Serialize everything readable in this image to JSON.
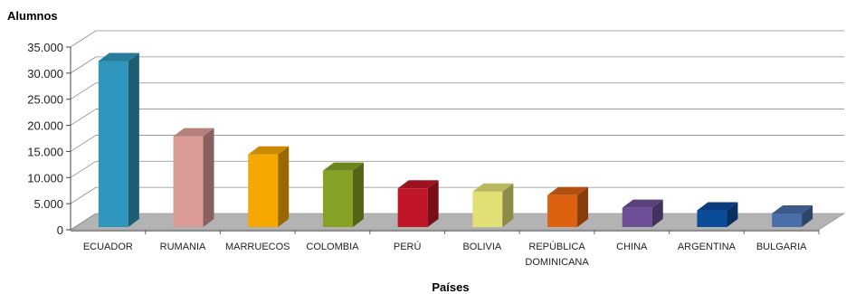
{
  "chart_data": {
    "type": "bar",
    "title": "",
    "ylabel": "Alumnos",
    "xlabel": "Países",
    "ylim": [
      0,
      35000
    ],
    "yticks": [
      "0",
      "5.000",
      "10.000",
      "15.000",
      "20.000",
      "25.000",
      "30.000",
      "35.000"
    ],
    "grid": true,
    "categories": [
      [
        "ECUADOR"
      ],
      [
        "RUMANIA"
      ],
      [
        "MARRUECOS"
      ],
      [
        "COLOMBIA"
      ],
      [
        "PERÚ"
      ],
      [
        "BOLIVIA"
      ],
      [
        "REPÚBLICA",
        "DOMINICANA"
      ],
      [
        "CHINA"
      ],
      [
        "ARGENTINA"
      ],
      [
        "BULGARIA"
      ]
    ],
    "values": [
      31800,
      17400,
      13900,
      10800,
      7400,
      6800,
      6100,
      3700,
      3200,
      2600
    ],
    "colors": [
      "#2f97bd",
      "#db9c97",
      "#f6a800",
      "#85a224",
      "#c01627",
      "#e1e074",
      "#dc6212",
      "#6c4f97",
      "#0b4c9a",
      "#4a6ea8"
    ],
    "style": "3d"
  }
}
